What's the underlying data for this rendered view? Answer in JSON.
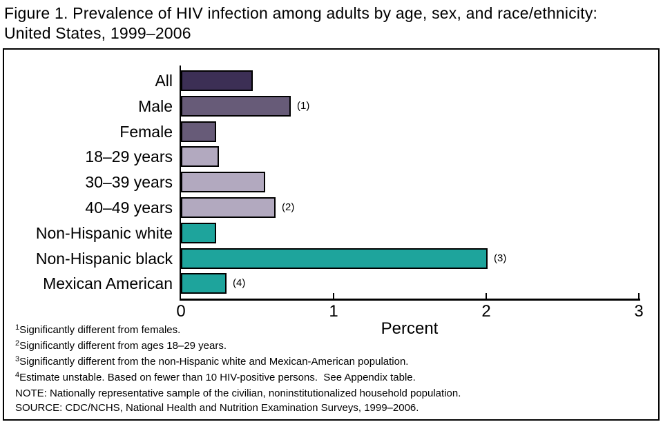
{
  "title": {
    "line1": "Figure 1. Prevalence of HIV infection among adults by age, sex, and race/ethnicity:",
    "line2": "United States, 1999–2006"
  },
  "chart_data": {
    "type": "bar",
    "orientation": "horizontal",
    "title": "Prevalence of HIV infection among adults by age, sex, and race/ethnicity: United States, 1999–2006",
    "xlabel": "Percent",
    "ylabel": "",
    "xlim": [
      0,
      3
    ],
    "xticks": [
      "0",
      "1",
      "2",
      "3"
    ],
    "grid": false,
    "legend": "none",
    "categories": [
      "All",
      "Male",
      "Female",
      "18–29 years",
      "30–39 years",
      "40–49 years",
      "Non-Hispanic white",
      "Non-Hispanic black",
      "Mexican American"
    ],
    "values": [
      0.47,
      0.72,
      0.23,
      0.25,
      0.55,
      0.62,
      0.23,
      2.01,
      0.3
    ],
    "annotations": [
      "",
      "(1)",
      "",
      "",
      "",
      "(2)",
      "",
      "(3)",
      "(4)"
    ],
    "groups": [
      "all",
      "sex",
      "sex",
      "age",
      "age",
      "age",
      "race",
      "race",
      "race"
    ],
    "group_colors": {
      "all": "#3C2F55",
      "sex": "#675B78",
      "age": "#B2A9BF",
      "race": "#1EA49C"
    },
    "bar_border_color": "#000000"
  },
  "footnotes": [
    {
      "sup": "1",
      "text": "Significantly different from females."
    },
    {
      "sup": "2",
      "text": "Significantly different from ages 18–29 years."
    },
    {
      "sup": "3",
      "text": "Significantly different from the non-Hispanic white and Mexican-American population."
    },
    {
      "sup": "4",
      "text": "Estimate unstable. Based on fewer than 10 HIV-positive persons.  See Appendix table."
    },
    {
      "sup": "",
      "text": "NOTE: Nationally representative sample of the civilian, noninstitutionalized household population."
    },
    {
      "sup": "",
      "text": "SOURCE: CDC/NCHS, National Health and Nutrition Examination Surveys, 1999–2006."
    }
  ]
}
